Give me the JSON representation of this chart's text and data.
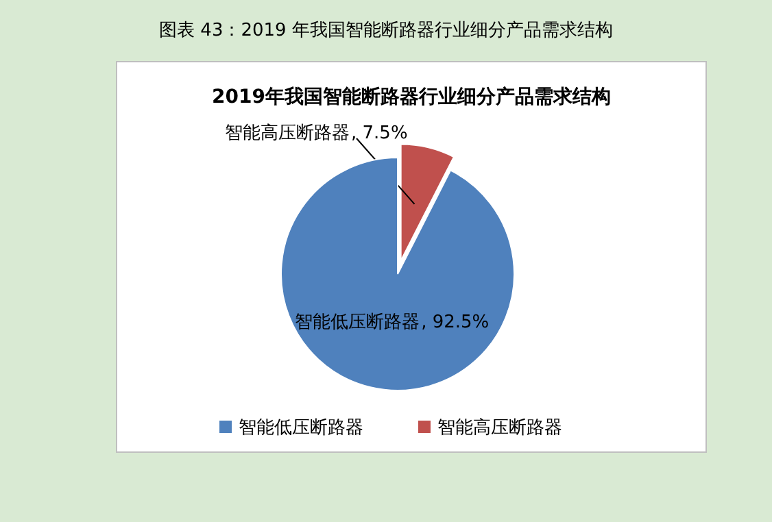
{
  "chart_data": {
    "type": "pie",
    "title": "图表 43：2019 年我国智能断路器行业细分产品需求结构",
    "subtitle": "2019年我国智能断路器行业细分产品需求结构",
    "categories": [
      "智能高压断路器",
      "智能低压断路器"
    ],
    "values": [
      7.5,
      92.5
    ],
    "colors": [
      "#c0504d",
      "#4f81bd"
    ],
    "value_labels": [
      ", 7.5%",
      ", 92.5%"
    ],
    "legend": "bottom"
  }
}
